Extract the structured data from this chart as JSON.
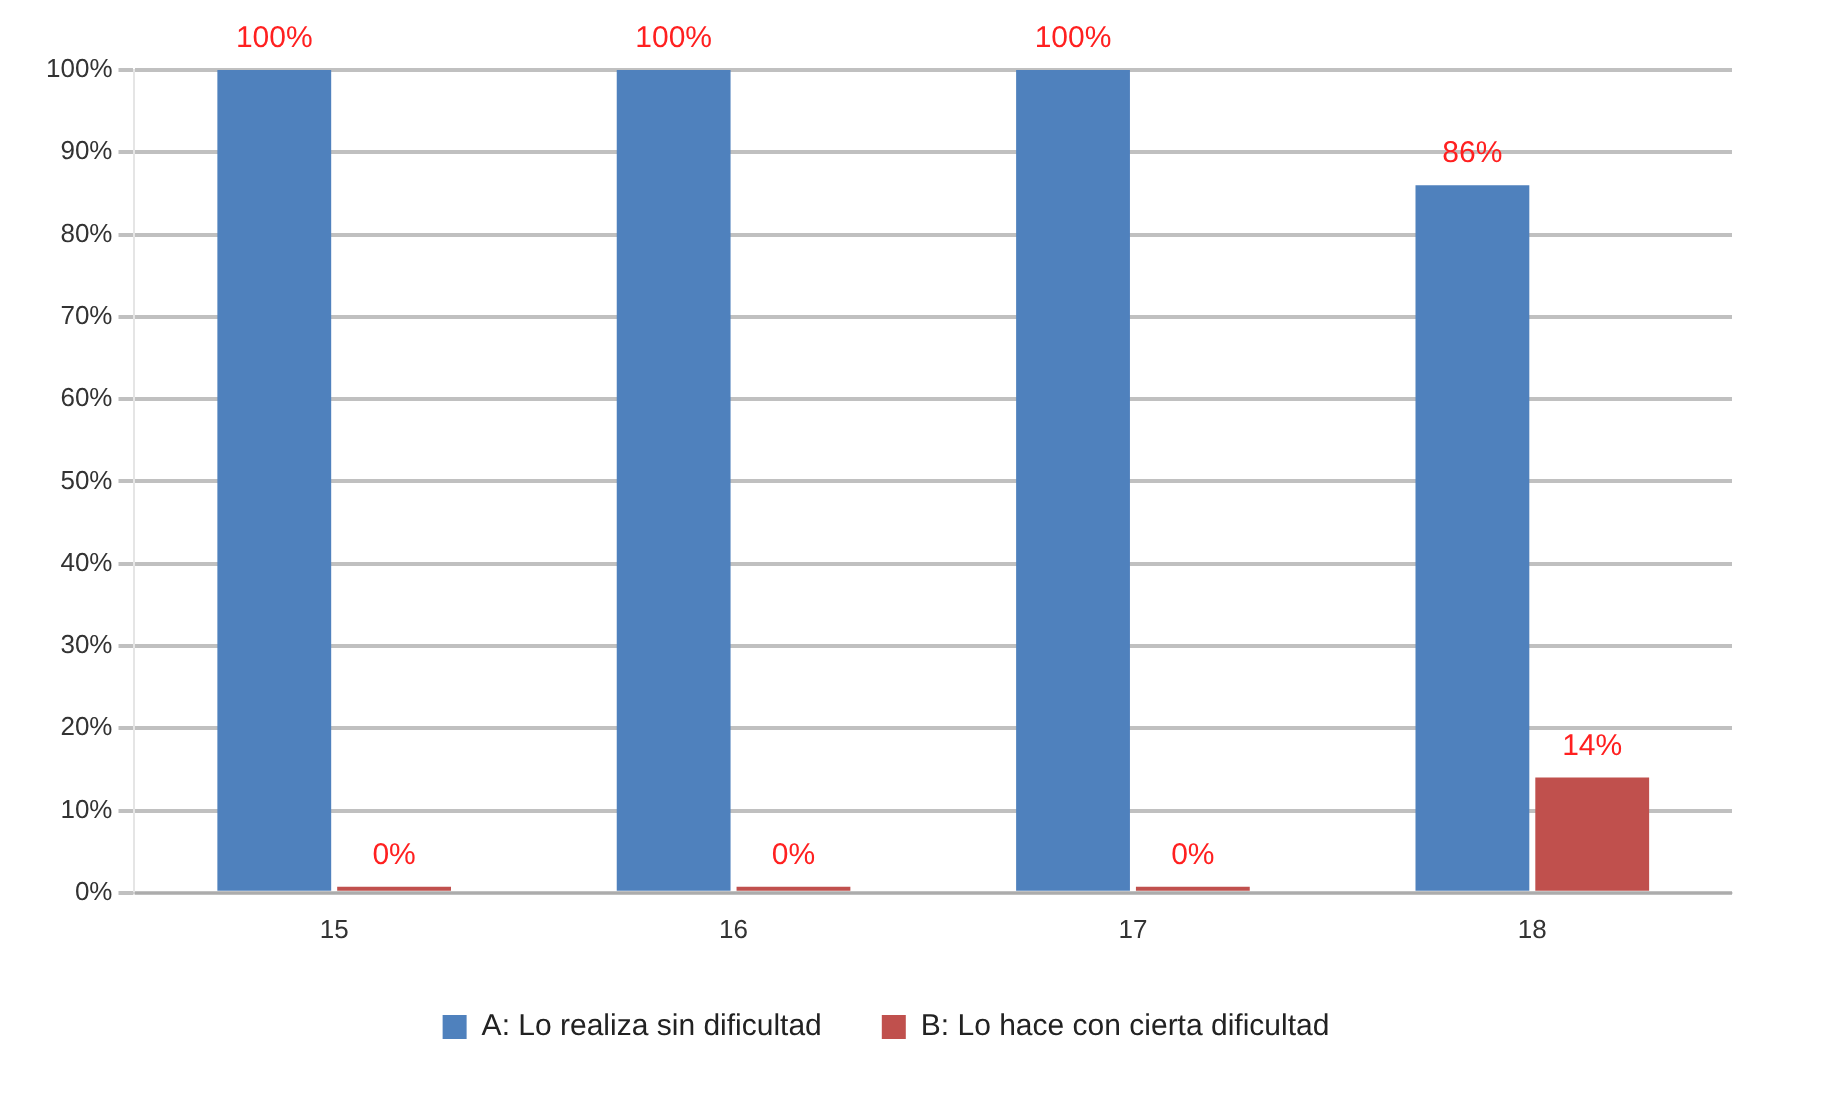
{
  "chart_data": {
    "type": "bar",
    "categories": [
      "15",
      "16",
      "17",
      "18"
    ],
    "series": [
      {
        "name": "A: Lo realiza sin dificultad",
        "color": "#4f81bd",
        "values": [
          100,
          100,
          100,
          86
        ],
        "value_labels": [
          "100%",
          "100%",
          "100%",
          "86%"
        ]
      },
      {
        "name": "B: Lo hace con cierta dificultad",
        "color": "#c0504d",
        "values": [
          0,
          0,
          0,
          14
        ],
        "value_labels": [
          "0%",
          "0%",
          "0%",
          "14%"
        ]
      }
    ],
    "ylim": [
      0,
      100
    ],
    "yticks": [
      {
        "value": 0,
        "label": "0%"
      },
      {
        "value": 10,
        "label": "10%"
      },
      {
        "value": 20,
        "label": "20%"
      },
      {
        "value": 30,
        "label": "30%"
      },
      {
        "value": 40,
        "label": "40%"
      },
      {
        "value": 50,
        "label": "50%"
      },
      {
        "value": 60,
        "label": "60%"
      },
      {
        "value": 70,
        "label": "70%"
      },
      {
        "value": 80,
        "label": "80%"
      },
      {
        "value": 90,
        "label": "90%"
      },
      {
        "value": 100,
        "label": "100%"
      }
    ],
    "grid": "y",
    "legend": "bottom"
  }
}
